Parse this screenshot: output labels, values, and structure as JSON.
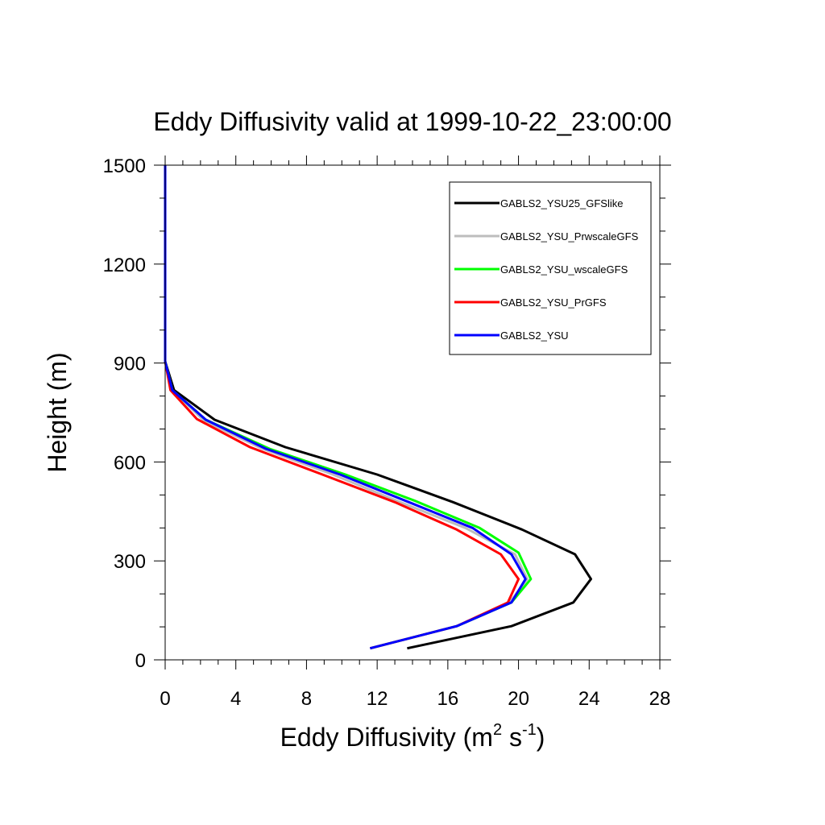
{
  "chart_data": {
    "type": "line",
    "title": "Eddy Diffusivity valid at 1999-10-22_23:00:00",
    "xlabel_main": "Eddy Diffusivity (m",
    "xlabel_sup1": "2",
    "xlabel_mid": " s",
    "xlabel_sup2": "-1",
    "xlabel_end": ")",
    "ylabel": "Height (m)",
    "xlim": [
      0,
      28
    ],
    "ylim": [
      0,
      1500
    ],
    "xticks": [
      0,
      4,
      8,
      12,
      16,
      20,
      24,
      28
    ],
    "yticks": [
      0,
      300,
      600,
      900,
      1200,
      1500
    ],
    "grid": false,
    "legend_position": "top-right",
    "series": [
      {
        "name": "GABLS2_YSU25_GFSlike",
        "color": "#000000",
        "points": [
          [
            13.7,
            35
          ],
          [
            19.6,
            102
          ],
          [
            23.1,
            174
          ],
          [
            24.1,
            245
          ],
          [
            23.2,
            320
          ],
          [
            20.2,
            395
          ],
          [
            16.3,
            478
          ],
          [
            12.0,
            562
          ],
          [
            6.8,
            645
          ],
          [
            2.8,
            728
          ],
          [
            0.5,
            818
          ],
          [
            0.0,
            905
          ],
          [
            0.0,
            1500
          ]
        ]
      },
      {
        "name": "GABLS2_YSU_PrwscaleGFS",
        "color": "#bdbdbd",
        "points": [
          [
            11.6,
            35
          ],
          [
            16.5,
            102
          ],
          [
            19.5,
            174
          ],
          [
            20.5,
            245
          ],
          [
            19.8,
            320
          ],
          [
            17.0,
            400
          ],
          [
            13.3,
            478
          ],
          [
            9.5,
            562
          ],
          [
            5.5,
            640
          ],
          [
            2.2,
            725
          ],
          [
            0.4,
            818
          ],
          [
            0.0,
            905
          ],
          [
            0.0,
            1500
          ]
        ]
      },
      {
        "name": "GABLS2_YSU_wscaleGFS",
        "color": "#00ff00",
        "points": [
          [
            11.6,
            35
          ],
          [
            16.5,
            102
          ],
          [
            19.6,
            174
          ],
          [
            20.7,
            245
          ],
          [
            20.0,
            325
          ],
          [
            17.8,
            400
          ],
          [
            14.1,
            483
          ],
          [
            10.2,
            562
          ],
          [
            5.9,
            640
          ],
          [
            2.3,
            728
          ],
          [
            0.4,
            818
          ],
          [
            0.0,
            905
          ],
          [
            0.0,
            1500
          ]
        ]
      },
      {
        "name": "GABLS2_YSU_PrGFS",
        "color": "#ff0000",
        "points": [
          [
            11.6,
            35
          ],
          [
            16.5,
            102
          ],
          [
            19.4,
            174
          ],
          [
            20.0,
            245
          ],
          [
            19.0,
            320
          ],
          [
            16.5,
            395
          ],
          [
            13.0,
            478
          ],
          [
            8.9,
            562
          ],
          [
            4.8,
            645
          ],
          [
            1.8,
            730
          ],
          [
            0.3,
            818
          ],
          [
            0.0,
            905
          ],
          [
            0.0,
            1500
          ]
        ]
      },
      {
        "name": "GABLS2_YSU",
        "color": "#0000ff",
        "points": [
          [
            11.6,
            35
          ],
          [
            16.5,
            102
          ],
          [
            19.6,
            174
          ],
          [
            20.4,
            245
          ],
          [
            19.6,
            320
          ],
          [
            17.4,
            400
          ],
          [
            13.8,
            478
          ],
          [
            9.9,
            562
          ],
          [
            5.7,
            640
          ],
          [
            2.3,
            728
          ],
          [
            0.4,
            818
          ],
          [
            0.0,
            905
          ],
          [
            0.0,
            1500
          ]
        ]
      }
    ]
  }
}
